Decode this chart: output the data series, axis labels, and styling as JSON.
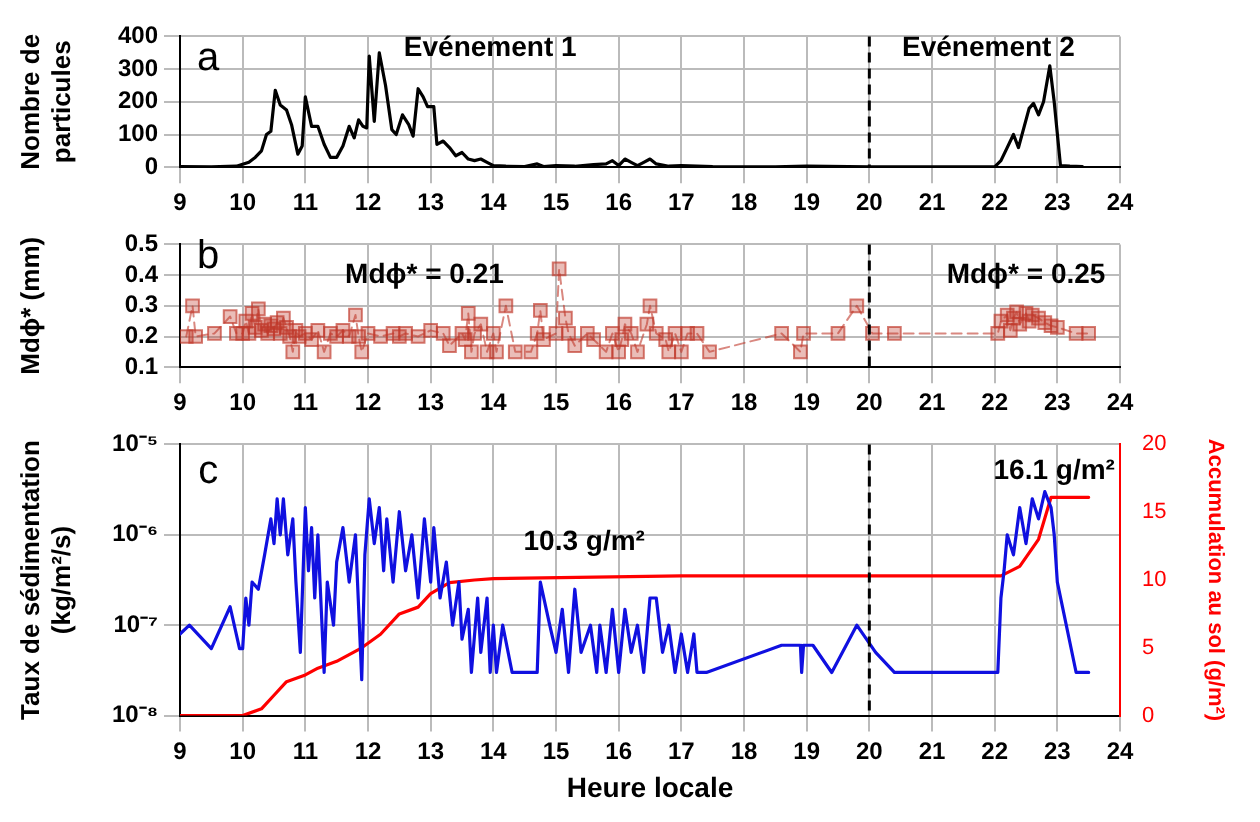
{
  "chart_data": [
    {
      "type": "line",
      "ylabel": "Nombre de particules",
      "xlim": [
        9,
        24
      ],
      "xticks": [
        9,
        10,
        11,
        12,
        13,
        14,
        15,
        16,
        17,
        18,
        19,
        20,
        21,
        22,
        23,
        24
      ],
      "ylim": [
        0,
        400
      ],
      "yticks": [
        0,
        100,
        200,
        300,
        400
      ],
      "grid": true,
      "legend": false,
      "marker": "none",
      "line_style": "solid",
      "ref_lines": [
        {
          "axis": "x",
          "value": 20,
          "line_style": "dashed",
          "color": "#000000"
        }
      ],
      "annotations": [
        "a",
        "Evénement 1",
        "Evénement 2"
      ],
      "series": [
        {
          "color": "#000000",
          "x": [
            9,
            9.5,
            9.9,
            10.1,
            10.2,
            10.3,
            10.38,
            10.45,
            10.52,
            10.6,
            10.7,
            10.78,
            10.88,
            10.95,
            11,
            11.1,
            11.2,
            11.3,
            11.4,
            11.5,
            11.6,
            11.7,
            11.78,
            11.85,
            11.92,
            11.98,
            12.02,
            12.1,
            12.18,
            12.28,
            12.38,
            12.45,
            12.55,
            12.65,
            12.72,
            12.8,
            12.88,
            12.95,
            13.05,
            13.1,
            13.2,
            13.3,
            13.4,
            13.5,
            13.6,
            13.7,
            13.8,
            13.9,
            14,
            14.2,
            14.5,
            14.7,
            14.8,
            15,
            15.3,
            15.6,
            15.8,
            15.9,
            16,
            16.1,
            16.2,
            16.3,
            16.4,
            16.5,
            16.6,
            16.8,
            17,
            17.5,
            18.5,
            19,
            20,
            21,
            22,
            22.1,
            22.2,
            22.3,
            22.38,
            22.55,
            22.62,
            22.7,
            22.78,
            22.88,
            22.95,
            23.05,
            23.2,
            23.4
          ],
          "values": [
            2,
            1,
            3,
            15,
            30,
            50,
            100,
            110,
            235,
            190,
            175,
            130,
            40,
            65,
            215,
            125,
            125,
            70,
            30,
            30,
            65,
            125,
            90,
            145,
            125,
            120,
            340,
            140,
            350,
            250,
            115,
            100,
            160,
            130,
            95,
            240,
            215,
            185,
            185,
            70,
            80,
            60,
            35,
            45,
            25,
            20,
            25,
            15,
            5,
            3,
            2,
            10,
            2,
            5,
            3,
            8,
            10,
            20,
            5,
            25,
            15,
            5,
            15,
            25,
            10,
            3,
            5,
            2,
            1,
            3,
            1,
            1,
            1,
            20,
            60,
            100,
            60,
            180,
            195,
            160,
            200,
            310,
            200,
            5,
            3,
            2
          ]
        }
      ]
    },
    {
      "type": "line",
      "ylabel": "Mdϕ* (mm)",
      "xlim": [
        9,
        24
      ],
      "xticks": [
        9,
        10,
        11,
        12,
        13,
        14,
        15,
        16,
        17,
        18,
        19,
        20,
        21,
        22,
        23,
        24
      ],
      "ylim": [
        0.1,
        0.5
      ],
      "yticks": [
        0.1,
        0.2,
        0.3,
        0.4,
        0.5
      ],
      "grid": true,
      "legend": false,
      "marker": "square",
      "line_style": "dashed",
      "ref_lines": [
        {
          "axis": "x",
          "value": 20,
          "line_style": "dashed",
          "color": "#000000"
        }
      ],
      "annotations": [
        "b",
        "Mdϕ* = 0.21",
        "Mdϕ* = 0.25"
      ],
      "series": [
        {
          "color": "#c0392b",
          "x": [
            9.1,
            9.2,
            9.25,
            9.55,
            9.8,
            9.9,
            10,
            10.05,
            10.1,
            10.15,
            10.2,
            10.25,
            10.3,
            10.35,
            10.4,
            10.45,
            10.5,
            10.55,
            10.6,
            10.65,
            10.7,
            10.75,
            10.8,
            10.85,
            10.9,
            11,
            11.1,
            11.2,
            11.3,
            11.4,
            11.5,
            11.6,
            11.7,
            11.8,
            11.85,
            11.9,
            12,
            12.2,
            12.4,
            12.5,
            12.6,
            12.8,
            13,
            13.2,
            13.3,
            13.5,
            13.55,
            13.6,
            13.65,
            13.7,
            13.8,
            13.9,
            14,
            14.05,
            14.2,
            14.35,
            14.6,
            14.7,
            14.75,
            14.8,
            15,
            15.05,
            15.15,
            15.2,
            15.3,
            15.5,
            15.6,
            15.8,
            15.9,
            16,
            16.05,
            16.1,
            16.2,
            16.3,
            16.45,
            16.5,
            16.6,
            16.75,
            16.8,
            16.9,
            17,
            17.1,
            17.25,
            17.45,
            18.6,
            18.9,
            18.95,
            19.5,
            19.8,
            20.05,
            20.4,
            22.05,
            22.1,
            22.2,
            22.25,
            22.3,
            22.35,
            22.4,
            22.5,
            22.55,
            22.6,
            22.7,
            22.8,
            22.9,
            23,
            23.3,
            23.5
          ],
          "values": [
            0.2,
            0.3,
            0.2,
            0.21,
            0.265,
            0.21,
            0.21,
            0.25,
            0.21,
            0.275,
            0.23,
            0.29,
            0.22,
            0.24,
            0.21,
            0.235,
            0.225,
            0.245,
            0.21,
            0.26,
            0.23,
            0.2,
            0.15,
            0.22,
            0.2,
            0.21,
            0.19,
            0.22,
            0.15,
            0.21,
            0.2,
            0.22,
            0.2,
            0.27,
            0.2,
            0.15,
            0.21,
            0.2,
            0.21,
            0.2,
            0.21,
            0.2,
            0.22,
            0.21,
            0.17,
            0.21,
            0.19,
            0.275,
            0.15,
            0.21,
            0.24,
            0.15,
            0.21,
            0.15,
            0.3,
            0.15,
            0.15,
            0.21,
            0.285,
            0.19,
            0.21,
            0.42,
            0.26,
            0.21,
            0.17,
            0.21,
            0.19,
            0.15,
            0.21,
            0.15,
            0.19,
            0.24,
            0.21,
            0.15,
            0.24,
            0.3,
            0.21,
            0.19,
            0.15,
            0.21,
            0.15,
            0.21,
            0.21,
            0.15,
            0.21,
            0.15,
            0.21,
            0.21,
            0.3,
            0.21,
            0.21,
            0.21,
            0.25,
            0.27,
            0.22,
            0.26,
            0.28,
            0.24,
            0.275,
            0.25,
            0.27,
            0.26,
            0.245,
            0.235,
            0.23,
            0.21,
            0.21
          ]
        }
      ]
    },
    {
      "type": "line",
      "xlabel": "Heure locale",
      "ylabel": "Taux de sédimentation (kg/m²/s)",
      "y2label": "Accumulation au sol (g/m²)",
      "xlim": [
        9,
        24
      ],
      "xticks": [
        9,
        10,
        11,
        12,
        13,
        14,
        15,
        16,
        17,
        18,
        19,
        20,
        21,
        22,
        23,
        24
      ],
      "ylim": [
        1e-08,
        1e-05
      ],
      "yticks": [
        {
          "value": 1e-08,
          "label": "10⁻⁸"
        },
        {
          "value": 1e-07,
          "label": "10⁻⁷"
        },
        {
          "value": 1e-06,
          "label": "10⁻⁶"
        },
        {
          "value": 1e-05,
          "label": "10⁻⁵"
        }
      ],
      "y2lim": [
        0,
        20
      ],
      "y2ticks": [
        0,
        5,
        10,
        15,
        20
      ],
      "log": "y",
      "grid": true,
      "legend": false,
      "marker": "none",
      "line_style": "solid",
      "ref_lines": [
        {
          "axis": "x",
          "value": 20,
          "line_style": "dashed",
          "color": "#000000"
        }
      ],
      "annotations": [
        "c",
        "10.3 g/m²",
        "16.1 g/m²"
      ],
      "series": [
        {
          "color": "#1010e0",
          "x": [
            9,
            9.15,
            9.5,
            9.8,
            9.95,
            10,
            10.05,
            10.1,
            10.15,
            10.25,
            10.35,
            10.45,
            10.5,
            10.55,
            10.6,
            10.65,
            10.72,
            10.8,
            10.85,
            10.92,
            11,
            11.05,
            11.1,
            11.15,
            11.2,
            11.3,
            11.35,
            11.45,
            11.5,
            11.6,
            11.7,
            11.8,
            11.9,
            11.95,
            12.02,
            12.1,
            12.18,
            12.25,
            12.3,
            12.4,
            12.5,
            12.6,
            12.7,
            12.8,
            12.9,
            13,
            13.05,
            13.15,
            13.25,
            13.35,
            13.45,
            13.5,
            13.6,
            13.65,
            13.75,
            13.8,
            13.9,
            13.95,
            14,
            14.05,
            14.15,
            14.3,
            14.7,
            14.75,
            14.9,
            15,
            15.1,
            15.2,
            15.3,
            15.4,
            15.55,
            15.65,
            15.7,
            15.8,
            15.9,
            16,
            16.1,
            16.2,
            16.3,
            16.4,
            16.5,
            16.6,
            16.7,
            16.8,
            16.9,
            17,
            17.1,
            17.2,
            17.25,
            17.4,
            18.6,
            18.9,
            18.92,
            18.95,
            19.1,
            19.4,
            19.8,
            20.1,
            20.4,
            22.05,
            22.1,
            22.15,
            22.2,
            22.3,
            22.4,
            22.5,
            22.6,
            22.7,
            22.8,
            22.9,
            22.95,
            23,
            23.3,
            23.5
          ],
          "values": [
            8e-08,
            1e-07,
            5.5e-08,
            1.6e-07,
            5.5e-08,
            5.5e-08,
            2e-07,
            1e-07,
            3e-07,
            2.5e-07,
            6e-07,
            1.5e-06,
            8e-07,
            2.5e-06,
            1e-06,
            2.5e-06,
            6e-07,
            1.5e-06,
            3e-07,
            5e-08,
            2e-06,
            4e-07,
            1.2e-06,
            2e-07,
            1e-06,
            3e-08,
            3e-07,
            1e-07,
            5e-07,
            1.2e-06,
            3e-07,
            1e-06,
            2.5e-08,
            6e-07,
            2.5e-06,
            8e-07,
            2e-06,
            4e-07,
            1.5e-06,
            3e-07,
            1.8e-06,
            4e-07,
            1e-06,
            2e-07,
            1.5e-06,
            3e-07,
            1.2e-06,
            2e-07,
            5e-07,
            1e-07,
            3e-07,
            7e-08,
            1.5e-07,
            3e-08,
            2e-07,
            5e-08,
            2e-07,
            3e-08,
            1e-07,
            3e-08,
            1e-07,
            3e-08,
            3e-08,
            3e-07,
            1e-07,
            5e-08,
            1.5e-07,
            3e-08,
            2.5e-07,
            5e-08,
            1e-07,
            3e-08,
            1e-07,
            3e-08,
            1.5e-07,
            3e-08,
            1.5e-07,
            5e-08,
            1e-07,
            3e-08,
            2e-07,
            2e-07,
            5e-08,
            1e-07,
            3e-08,
            8e-08,
            3e-08,
            8e-08,
            3e-08,
            3e-08,
            6e-08,
            6e-08,
            3e-08,
            6e-08,
            6e-08,
            3e-08,
            1e-07,
            5e-08,
            3e-08,
            3e-08,
            2e-07,
            4e-07,
            1e-06,
            6e-07,
            2e-06,
            8e-07,
            2.5e-06,
            1.5e-06,
            3e-06,
            2e-06,
            1e-06,
            3e-07,
            3e-08,
            3e-08
          ]
        },
        {
          "color": "#ff0000",
          "axis": "y2",
          "x": [
            9,
            10,
            10.3,
            10.5,
            10.7,
            11,
            11.2,
            11.5,
            11.9,
            12.2,
            12.5,
            12.8,
            13,
            13.3,
            13.7,
            14,
            17,
            20,
            22.1,
            22.4,
            22.7,
            22.9,
            23.5
          ],
          "values": [
            0,
            0,
            0.5,
            1.5,
            2.5,
            3,
            3.5,
            4,
            5,
            6,
            7.5,
            8,
            9,
            9.8,
            10,
            10.1,
            10.3,
            10.3,
            10.3,
            11,
            13,
            16.1,
            16.1
          ]
        }
      ]
    }
  ]
}
